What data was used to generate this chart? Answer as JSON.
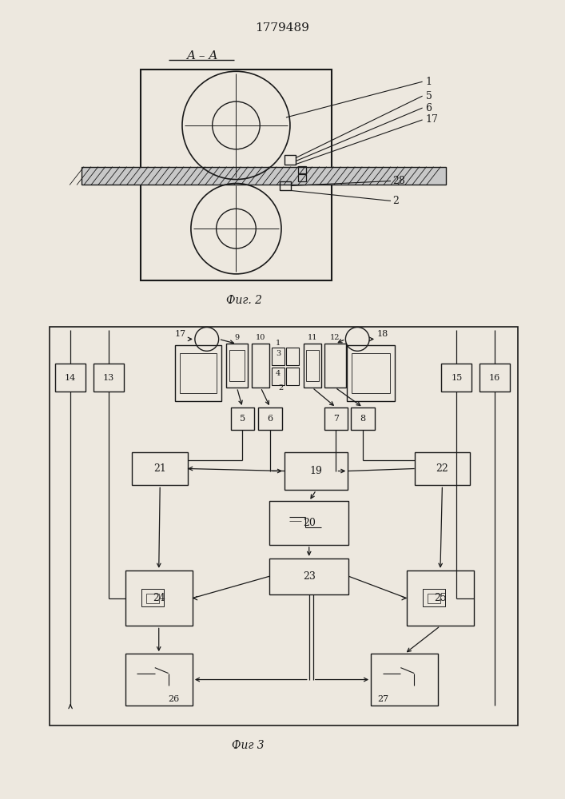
{
  "patent_number": "1779489",
  "fig2_label": "A – A",
  "fig2_caption": "Фиг. 2",
  "fig3_caption": "Фиг 3",
  "bg_color": "#ede8df",
  "line_color": "#1a1a1a"
}
